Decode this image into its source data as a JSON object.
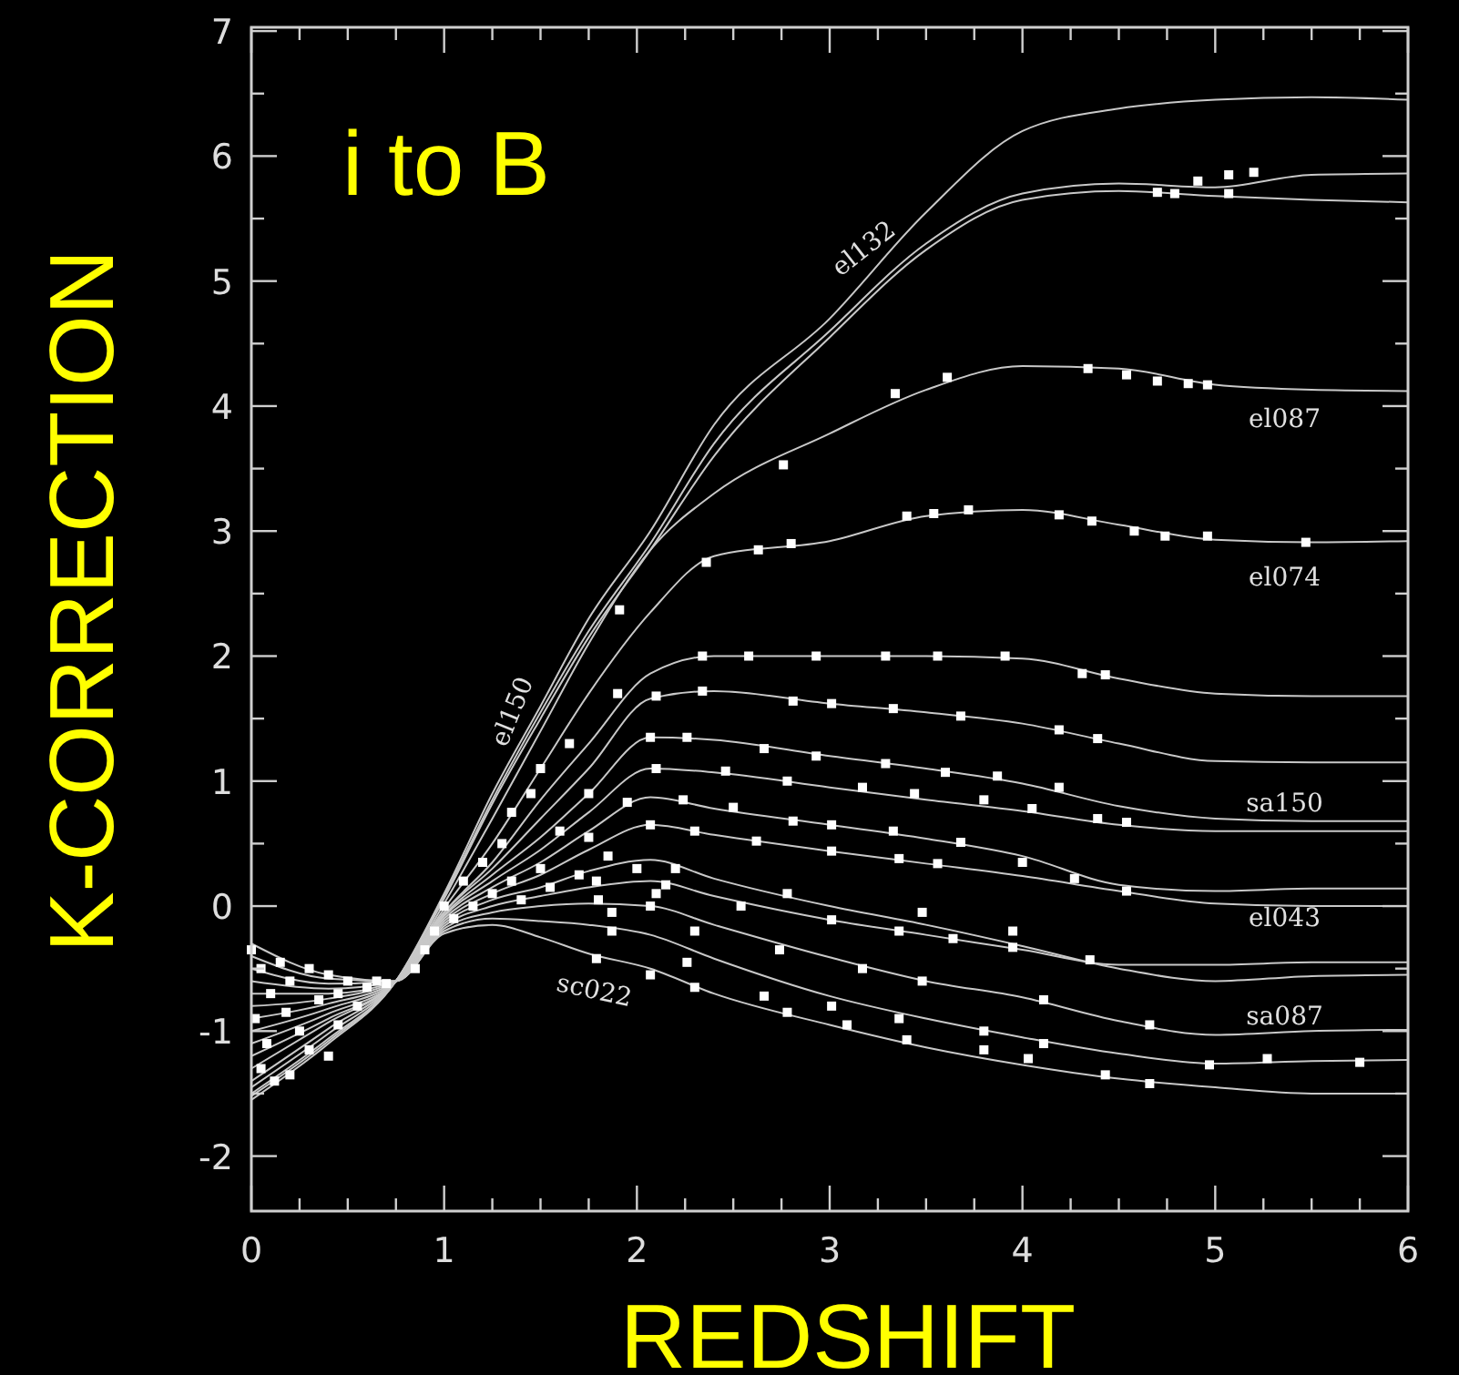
{
  "chart_data": {
    "type": "line",
    "title": "i to B",
    "xlabel": "REDSHIFT",
    "ylabel": "K-CORRECTION",
    "xlim": [
      0,
      6
    ],
    "ylim": [
      -2.44,
      7.03
    ],
    "xticks": [
      0,
      {
        "value": 0.25,
        "label": null
      },
      {
        "value": 0.5,
        "label": null
      },
      {
        "value": 0.75,
        "label": null
      },
      1,
      {
        "value": 1.25,
        "label": null
      },
      {
        "value": 1.5,
        "label": null
      },
      {
        "value": 1.75,
        "label": null
      },
      2,
      {
        "value": 2.25,
        "label": null
      },
      {
        "value": 2.5,
        "label": null
      },
      {
        "value": 2.75,
        "label": null
      },
      3,
      {
        "value": 3.25,
        "label": null
      },
      {
        "value": 3.5,
        "label": null
      },
      {
        "value": 3.75,
        "label": null
      },
      4,
      {
        "value": 4.25,
        "label": null
      },
      {
        "value": 4.5,
        "label": null
      },
      {
        "value": 4.75,
        "label": null
      },
      5,
      {
        "value": 5.25,
        "label": null
      },
      {
        "value": 5.5,
        "label": null
      },
      {
        "value": 5.75,
        "label": null
      },
      6
    ],
    "yticks": [
      -2,
      {
        "value": -1.5,
        "label": null
      },
      -1,
      {
        "value": -0.5,
        "label": null
      },
      0,
      {
        "value": 0.5,
        "label": null
      },
      1,
      {
        "value": 1.5,
        "label": null
      },
      2,
      {
        "value": 2.5,
        "label": null
      },
      3,
      {
        "value": 3.5,
        "label": null
      },
      4,
      {
        "value": 4.5,
        "label": null
      },
      5,
      {
        "value": 5.5,
        "label": null
      },
      6,
      {
        "value": 6.5,
        "label": null
      },
      7
    ],
    "grid": false,
    "x": [
      0,
      0.4,
      0.75,
      1,
      1.25,
      1.5,
      1.75,
      2.07,
      2.4,
      3,
      3.5,
      4,
      4.5,
      5,
      5.5,
      6
    ],
    "series": [
      {
        "name": "el132",
        "color": "#c8c8c8",
        "values": [
          -1.55,
          -1.1,
          -0.6,
          0.1,
          0.9,
          1.6,
          2.3,
          3.0,
          3.85,
          4.7,
          5.55,
          6.2,
          6.38,
          6.45,
          6.47,
          6.45
        ]
      },
      {
        "color": "#c8c8c8",
        "values": [
          -1.52,
          -1.08,
          -0.6,
          0.08,
          0.85,
          1.55,
          2.2,
          2.9,
          3.7,
          4.6,
          5.3,
          5.7,
          5.78,
          5.75,
          5.85,
          5.86
        ]
      },
      {
        "name": "el150",
        "color": "#c8c8c8",
        "values": [
          -1.5,
          -1.06,
          -0.6,
          0.06,
          0.82,
          1.5,
          2.15,
          2.85,
          3.6,
          4.55,
          5.25,
          5.65,
          5.72,
          5.68,
          5.65,
          5.63
        ]
      },
      {
        "name": "el087",
        "color": "#c8c8c8",
        "values": [
          -1.45,
          -1.02,
          -0.6,
          0.02,
          0.7,
          1.4,
          2.1,
          2.85,
          3.3,
          3.78,
          4.13,
          4.32,
          4.3,
          4.17,
          4.13,
          4.12
        ]
      },
      {
        "name": "el074",
        "color": "#c8c8c8",
        "values": [
          -1.4,
          -0.98,
          -0.6,
          -0.02,
          0.5,
          1.1,
          1.7,
          2.35,
          2.8,
          2.92,
          3.12,
          3.17,
          3.05,
          2.93,
          2.91,
          2.92
        ]
      },
      {
        "color": "#c8c8c8",
        "values": [
          -1.3,
          -0.93,
          -0.6,
          -0.05,
          0.35,
          0.85,
          1.3,
          1.86,
          2.0,
          2.0,
          2.0,
          1.98,
          1.82,
          1.7,
          1.68,
          1.68
        ]
      },
      {
        "name": "sa150",
        "color": "#c8c8c8",
        "values": [
          -1.2,
          -0.9,
          -0.6,
          -0.05,
          0.3,
          0.7,
          1.1,
          1.66,
          1.72,
          1.62,
          1.55,
          1.46,
          1.3,
          1.16,
          1.15,
          1.15
        ]
      },
      {
        "color": "#c8c8c8",
        "values": [
          -1.1,
          -0.86,
          -0.6,
          -0.07,
          0.25,
          0.55,
          0.9,
          1.35,
          1.33,
          1.2,
          1.1,
          0.98,
          0.8,
          0.7,
          0.68,
          0.68
        ]
      },
      {
        "color": "#c8c8c8",
        "values": [
          -1.0,
          -0.82,
          -0.6,
          -0.08,
          0.2,
          0.45,
          0.75,
          1.1,
          1.07,
          0.95,
          0.85,
          0.76,
          0.65,
          0.6,
          0.6,
          0.6
        ]
      },
      {
        "name": "el043",
        "color": "#c8c8c8",
        "values": [
          -0.9,
          -0.78,
          -0.6,
          -0.1,
          0.15,
          0.35,
          0.6,
          0.87,
          0.78,
          0.65,
          0.54,
          0.4,
          0.17,
          0.12,
          0.14,
          0.14
        ]
      },
      {
        "color": "#c8c8c8",
        "values": [
          -0.8,
          -0.74,
          -0.6,
          -0.12,
          0.1,
          0.25,
          0.45,
          0.65,
          0.57,
          0.44,
          0.34,
          0.24,
          0.12,
          0.02,
          0.0,
          0.0
        ]
      },
      {
        "name": "sa087",
        "color": "#c8c8c8",
        "values": [
          -0.7,
          -0.7,
          -0.6,
          -0.14,
          0.05,
          0.15,
          0.28,
          0.37,
          0.22,
          0.0,
          -0.15,
          -0.32,
          -0.5,
          -0.6,
          -0.56,
          -0.55
        ]
      },
      {
        "color": "#c8c8c8",
        "values": [
          -0.6,
          -0.66,
          -0.6,
          -0.16,
          0.0,
          0.08,
          0.15,
          0.2,
          0.08,
          -0.11,
          -0.23,
          -0.35,
          -0.47,
          -0.47,
          -0.45,
          -0.45
        ]
      },
      {
        "color": "#c8c8c8",
        "values": [
          -0.5,
          -0.62,
          -0.6,
          -0.18,
          -0.05,
          0.0,
          0.02,
          0.0,
          -0.15,
          -0.41,
          -0.6,
          -0.73,
          -0.92,
          -1.03,
          -1.0,
          -0.99
        ]
      },
      {
        "color": "#c8c8c8",
        "values": [
          -0.4,
          -0.58,
          -0.6,
          -0.2,
          -0.1,
          -0.12,
          -0.15,
          -0.23,
          -0.42,
          -0.72,
          -0.9,
          -1.05,
          -1.18,
          -1.26,
          -1.24,
          -1.23
        ]
      },
      {
        "name": "sc022",
        "color": "#c8c8c8",
        "values": [
          -0.3,
          -0.55,
          -0.6,
          -0.22,
          -0.15,
          -0.25,
          -0.38,
          -0.5,
          -0.7,
          -0.95,
          -1.13,
          -1.27,
          -1.38,
          -1.45,
          -1.5,
          -1.5
        ]
      },
      {
        "type": "scatter",
        "marker": "square",
        "color": "#ffffff",
        "x": [
          1.91,
          4.7,
          4.79,
          4.91,
          5.07,
          5.2,
          5.07,
          2.76,
          3.34,
          3.61,
          4.34,
          4.54,
          4.7,
          4.86,
          4.96,
          2.36,
          2.63,
          2.8,
          3.4,
          3.54,
          3.72,
          4.19,
          4.36,
          4.58,
          4.74,
          4.96,
          5.47,
          2.34,
          2.58,
          2.93,
          3.29,
          3.56,
          3.91,
          4.31,
          4.43,
          2.1,
          2.34,
          2.81,
          3.01,
          3.33,
          3.68,
          4.19,
          4.39,
          2.07,
          2.26,
          2.66,
          2.93,
          3.29,
          3.6,
          3.87,
          4.19,
          2.1,
          2.46,
          2.78,
          3.17,
          3.44,
          3.8,
          4.05,
          4.39,
          4.54,
          1.95,
          2.24,
          2.5,
          2.81,
          3.01,
          3.33,
          3.68,
          4.0,
          4.27,
          4.54,
          1.75,
          2.07,
          2.3,
          2.62,
          3.01,
          3.36,
          3.56,
          1.79,
          2.15,
          2.54,
          3.01,
          3.36,
          3.64,
          3.95,
          4.35,
          1.87,
          2.07,
          2.74,
          3.17,
          3.48,
          4.11,
          4.66,
          1.87,
          2.26,
          2.66,
          3.01,
          3.36,
          3.8,
          4.11,
          4.97,
          5.27,
          5.75,
          1.79,
          2.07,
          2.3,
          2.78,
          3.09,
          3.4,
          3.8,
          4.03,
          4.43,
          4.66,
          2.78,
          3.48,
          3.95,
          0.0,
          0.05,
          0.1,
          0.02,
          0.08,
          0.05,
          0.15,
          0.2,
          0.18,
          0.25,
          0.12,
          0.3,
          0.35,
          0.3,
          0.4,
          0.45,
          0.45,
          0.5,
          0.55,
          0.6,
          0.65,
          0.7,
          0.4,
          0.2,
          0.85,
          0.9,
          0.95,
          1.0,
          1.05,
          1.1,
          1.15,
          1.2,
          1.25,
          1.3,
          1.35,
          1.4,
          1.45,
          1.5,
          1.55,
          1.6,
          1.65,
          1.7,
          1.75,
          1.8,
          1.85,
          1.9,
          2.0,
          2.1,
          2.2,
          2.3,
          1.5,
          1.35
        ],
        "values": [
          2.37,
          5.71,
          5.7,
          5.8,
          5.85,
          5.87,
          5.7,
          3.53,
          4.1,
          4.23,
          4.3,
          4.25,
          4.2,
          4.18,
          4.17,
          2.75,
          2.85,
          2.9,
          3.12,
          3.14,
          3.17,
          3.13,
          3.08,
          3.0,
          2.96,
          2.96,
          2.91,
          2.0,
          2.0,
          2.0,
          2.0,
          2.0,
          2.0,
          1.86,
          1.85,
          1.68,
          1.72,
          1.64,
          1.62,
          1.58,
          1.52,
          1.41,
          1.34,
          1.35,
          1.35,
          1.26,
          1.2,
          1.14,
          1.07,
          1.04,
          0.95,
          1.1,
          1.08,
          1.0,
          0.95,
          0.9,
          0.85,
          0.78,
          0.7,
          0.67,
          0.83,
          0.85,
          0.79,
          0.68,
          0.65,
          0.6,
          0.51,
          0.35,
          0.22,
          0.12,
          0.55,
          0.65,
          0.6,
          0.52,
          0.44,
          0.38,
          0.34,
          0.2,
          0.17,
          0.0,
          -0.11,
          -0.2,
          -0.26,
          -0.33,
          -0.43,
          -0.05,
          0.0,
          -0.35,
          -0.5,
          -0.6,
          -0.75,
          -0.95,
          -0.2,
          -0.45,
          -0.72,
          -0.8,
          -0.9,
          -1.0,
          -1.1,
          -1.27,
          -1.22,
          -1.25,
          -0.42,
          -0.55,
          -0.65,
          -0.85,
          -0.95,
          -1.07,
          -1.15,
          -1.22,
          -1.35,
          -1.42,
          0.1,
          -0.05,
          -0.2,
          -0.35,
          -0.5,
          -0.7,
          -0.9,
          -1.1,
          -1.3,
          -0.45,
          -0.6,
          -0.85,
          -1.0,
          -1.4,
          -0.5,
          -0.75,
          -1.15,
          -0.55,
          -0.7,
          -0.95,
          -0.6,
          -0.8,
          -0.65,
          -0.6,
          -0.62,
          -1.2,
          -1.35,
          -0.5,
          -0.35,
          -0.2,
          0.0,
          -0.1,
          0.2,
          0.0,
          0.35,
          0.1,
          0.5,
          0.2,
          0.05,
          0.9,
          0.3,
          0.15,
          0.6,
          1.3,
          0.25,
          0.9,
          0.05,
          0.4,
          1.7,
          0.3,
          0.1,
          0.3,
          -0.2,
          1.1,
          0.75
        ]
      }
    ]
  }
}
